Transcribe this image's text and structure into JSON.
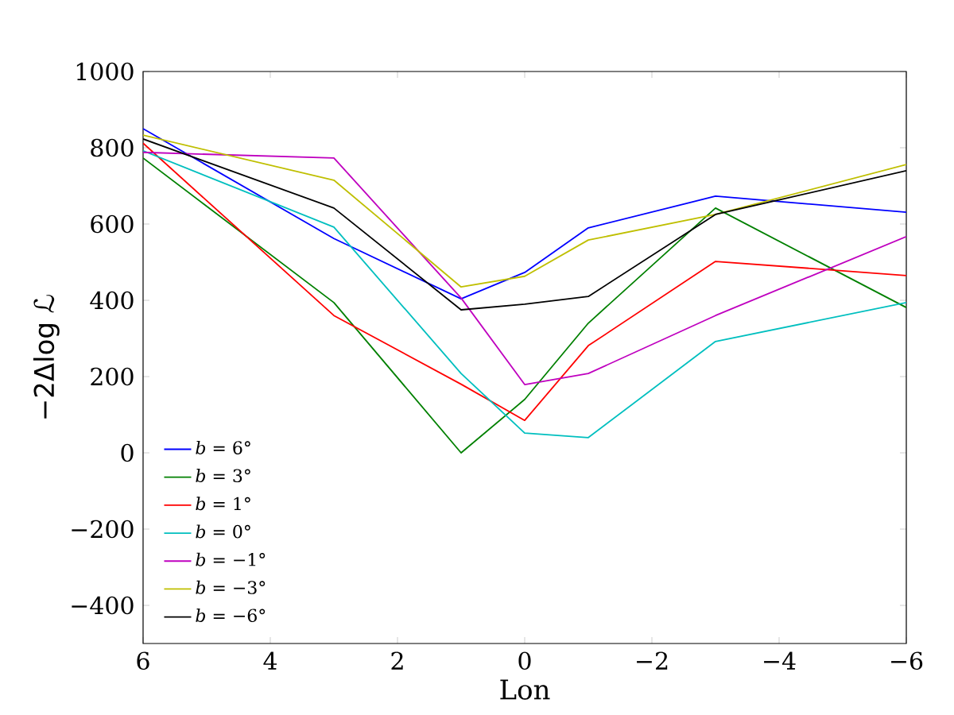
{
  "chart_data": {
    "type": "line",
    "xlabel": "Lon",
    "ylabel": "−2Δlog ℒ",
    "x": [
      6,
      3,
      1,
      0,
      -1,
      -3,
      -6
    ],
    "xlim": [
      6,
      -6
    ],
    "xticks": [
      6,
      4,
      2,
      0,
      {
        "value": -2,
        "label": "−2"
      },
      {
        "value": -4,
        "label": "−4"
      },
      {
        "value": -6,
        "label": "−6"
      }
    ],
    "ylim": [
      -500,
      1000
    ],
    "yticks": [
      {
        "value": -400,
        "label": "−400"
      },
      {
        "value": -200,
        "label": "−200"
      },
      0,
      200,
      400,
      600,
      800,
      1000
    ],
    "grid": false,
    "legend": "bottom left",
    "marker": "none",
    "line_style": "solid",
    "series": [
      {
        "name": "*b* = 6°",
        "color": "#0000ff",
        "values": [
          850,
          562,
          404,
          473,
          590,
          673,
          631
        ]
      },
      {
        "name": "*b* = 3°",
        "color": "#008000",
        "values": [
          773,
          394,
          0,
          140,
          340,
          642,
          381
        ]
      },
      {
        "name": "*b* = 1°",
        "color": "#ff0000",
        "values": [
          812,
          360,
          180,
          85,
          281,
          502,
          465
        ]
      },
      {
        "name": "*b* = 0°",
        "color": "#00bfbf",
        "values": [
          792,
          592,
          208,
          52,
          40,
          292,
          394
        ]
      },
      {
        "name": "*b* = −1°",
        "color": "#bf00bf",
        "values": [
          788,
          773,
          406,
          179,
          208,
          360,
          567
        ]
      },
      {
        "name": "*b* = −3°",
        "color": "#bfbf00",
        "values": [
          833,
          715,
          435,
          463,
          558,
          625,
          756
        ]
      },
      {
        "name": "*b* = −6°",
        "color": "#000000",
        "values": [
          823,
          642,
          375,
          390,
          410,
          625,
          740
        ]
      }
    ]
  }
}
